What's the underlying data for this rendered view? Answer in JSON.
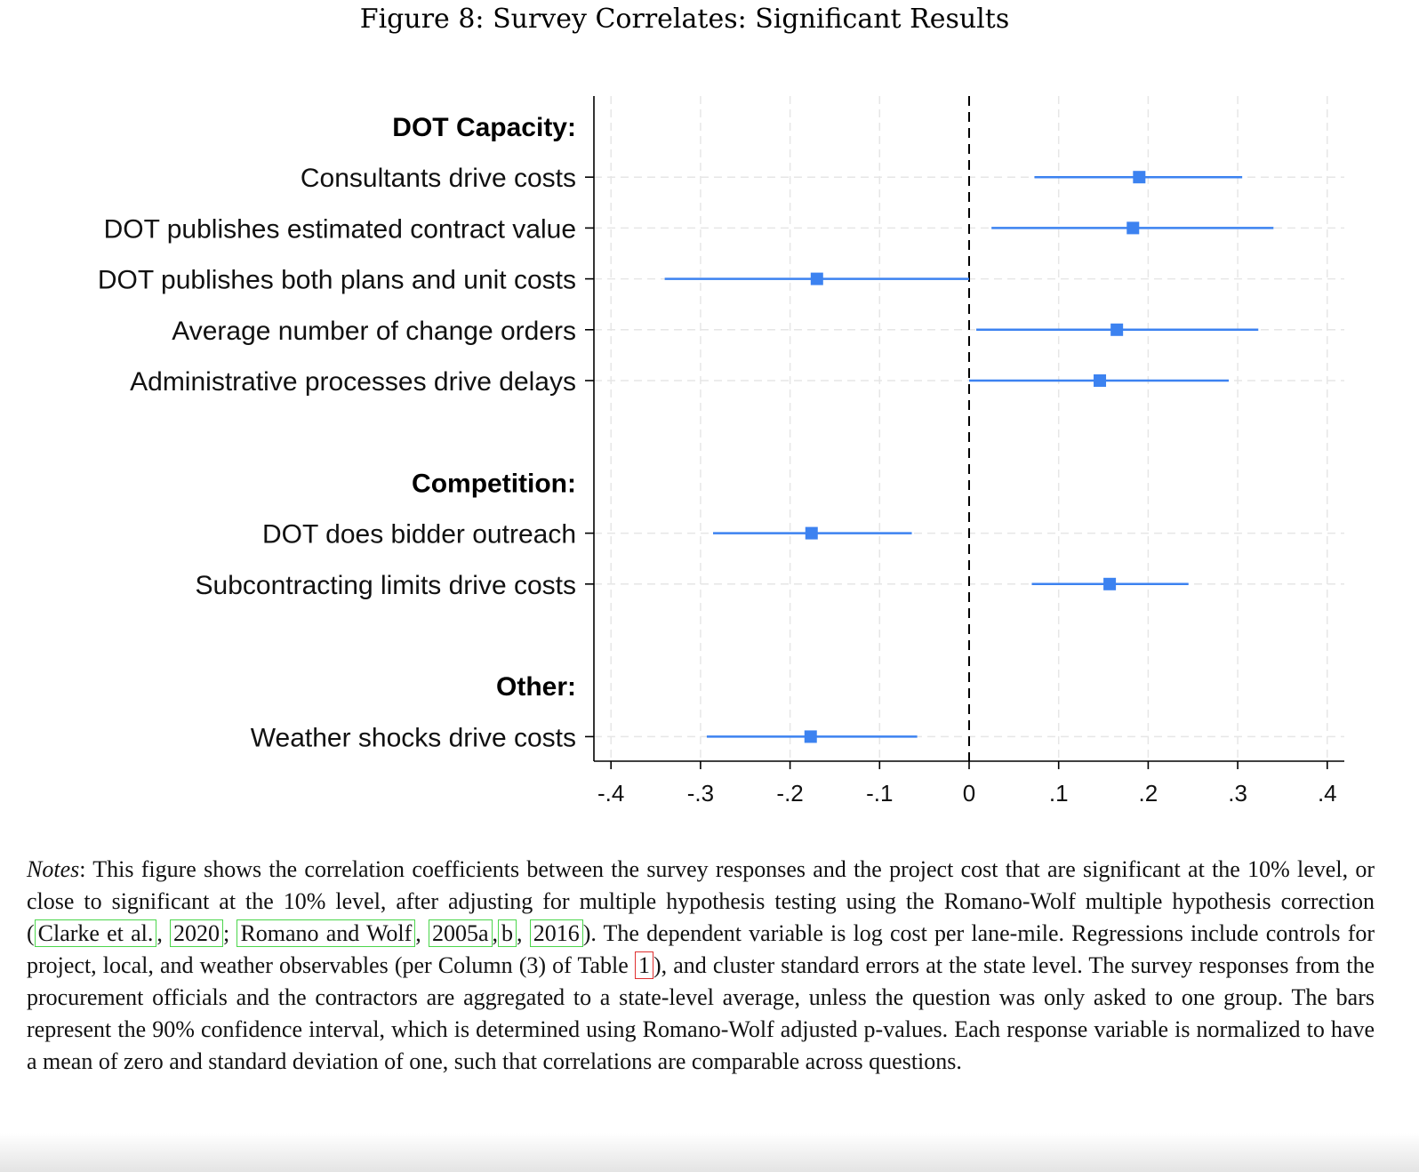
{
  "figure_title": "Figure 8: Survey Correlates: Significant Results",
  "chart_data": {
    "type": "coefficient-plot",
    "title": "Survey Correlates: Significant Results",
    "xlim": [
      -0.42,
      0.42
    ],
    "ticks": [
      -0.4,
      -0.3,
      -0.2,
      -0.1,
      0,
      0.1,
      0.2,
      0.3,
      0.4
    ],
    "tick_labels": [
      "-.4",
      "-.3",
      "-.2",
      "-.1",
      "0",
      ".1",
      ".2",
      ".3",
      ".4"
    ],
    "reference_line": 0,
    "grid": true,
    "marker_color": "#3c82f0",
    "groups": [
      {
        "label": "DOT Capacity:",
        "items": [
          {
            "label": "Consultants drive costs",
            "estimate": 0.19,
            "ci_low": 0.073,
            "ci_high": 0.305
          },
          {
            "label": "DOT publishes estimated contract value",
            "estimate": 0.183,
            "ci_low": 0.025,
            "ci_high": 0.34
          },
          {
            "label": "DOT publishes both plans and unit costs",
            "estimate": -0.17,
            "ci_low": -0.34,
            "ci_high": 0.0
          },
          {
            "label": "Average number of change orders",
            "estimate": 0.165,
            "ci_low": 0.008,
            "ci_high": 0.323
          },
          {
            "label": "Administrative processes drive delays",
            "estimate": 0.146,
            "ci_low": 0.0,
            "ci_high": 0.29
          }
        ]
      },
      {
        "label": "Competition:",
        "items": [
          {
            "label": "DOT does bidder outreach",
            "estimate": -0.176,
            "ci_low": -0.286,
            "ci_high": -0.064
          },
          {
            "label": "Subcontracting limits drive costs",
            "estimate": 0.157,
            "ci_low": 0.07,
            "ci_high": 0.245
          }
        ]
      },
      {
        "label": "Other:",
        "items": [
          {
            "label": "Weather shocks drive costs",
            "estimate": -0.177,
            "ci_low": -0.293,
            "ci_high": -0.058
          }
        ]
      }
    ]
  },
  "notes": {
    "label": "Notes",
    "seg1": ": This figure shows the correlation coefficients between the survey responses and the project cost that are significant at the 10% level, or close to significant at the 10% level, after adjusting for multiple hypothesis testing using the Romano-Wolf multiple hypothesis correction (",
    "cite1": "Clarke et al.",
    "sep1": ", ",
    "cite2": "2020",
    "sep2": "; ",
    "cite3": "Romano and Wolf",
    "sep3": ", ",
    "cite4": "2005a",
    "sep4": ",",
    "cite5": "b",
    "sep5": ", ",
    "cite6": "2016",
    "seg2": "). The dependent variable is log cost per lane-mile. Regressions include controls for project, local, and weather observables (per Column (3) of Table ",
    "tref": "1",
    "seg3": "), and cluster standard errors at the state level. The survey responses from the procurement officials and the contractors are aggregated to a state-level average, unless the question was only asked to one group. The bars represent the 90% confidence interval, which is determined using Romano-Wolf adjusted p-values. Each response variable is normalized to have a mean of zero and standard deviation of one, such that correlations are comparable across questions."
  }
}
